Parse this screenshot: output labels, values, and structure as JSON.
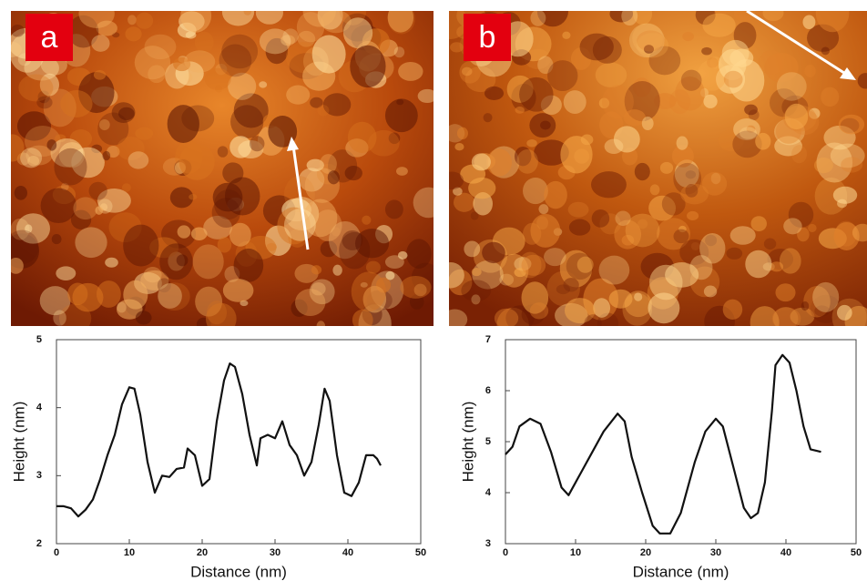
{
  "chart_data": [
    {
      "type": "line",
      "panel": "a",
      "xlabel": "Distance (nm)",
      "ylabel": "Height (nm)",
      "xlim": [
        0,
        50
      ],
      "xticks": [
        0,
        10,
        20,
        30,
        40,
        50
      ],
      "ylim": [
        2,
        5
      ],
      "yticks": [
        2,
        3,
        4,
        5
      ],
      "color": "#111111",
      "x": [
        0,
        1,
        2,
        3,
        4,
        5,
        6,
        7,
        8,
        9,
        10,
        10.7,
        11.5,
        12.5,
        13.5,
        14.5,
        15.5,
        16.5,
        17.5,
        18,
        19,
        20,
        21,
        22,
        23,
        23.8,
        24.5,
        25.5,
        26.5,
        27.5,
        28,
        29,
        30,
        31,
        32,
        33,
        34,
        35,
        36,
        36.8,
        37.5,
        38.5,
        39.5,
        40.5,
        41.5,
        42.5,
        43.5,
        44,
        44.5
      ],
      "values": [
        2.55,
        2.55,
        2.52,
        2.4,
        2.5,
        2.65,
        2.95,
        3.3,
        3.6,
        4.05,
        4.3,
        4.28,
        3.9,
        3.2,
        2.75,
        3.0,
        2.98,
        3.1,
        3.12,
        3.4,
        3.3,
        2.85,
        2.95,
        3.8,
        4.4,
        4.65,
        4.6,
        4.2,
        3.6,
        3.15,
        3.55,
        3.6,
        3.55,
        3.8,
        3.45,
        3.3,
        3.0,
        3.2,
        3.75,
        4.28,
        4.1,
        3.3,
        2.75,
        2.7,
        2.9,
        3.3,
        3.3,
        3.25,
        3.15
      ]
    },
    {
      "type": "line",
      "panel": "b",
      "xlabel": "Distance (nm)",
      "ylabel": "Height (nm)",
      "xlim": [
        0,
        50
      ],
      "xticks": [
        0,
        10,
        20,
        30,
        40,
        50
      ],
      "ylim": [
        3,
        7
      ],
      "yticks": [
        3,
        4,
        5,
        6,
        7
      ],
      "color": "#111111",
      "x": [
        0,
        1,
        2,
        3.5,
        5,
        6.5,
        8,
        9,
        10,
        12,
        14,
        16,
        17,
        18,
        19.5,
        21,
        22,
        23.5,
        25,
        27,
        28.5,
        30,
        31,
        32.5,
        34,
        35,
        36,
        37,
        38,
        38.5,
        39.5,
        40.5,
        41.5,
        42.5,
        43.5,
        45
      ],
      "values": [
        4.75,
        4.9,
        5.3,
        5.45,
        5.35,
        4.8,
        4.1,
        3.95,
        4.2,
        4.7,
        5.2,
        5.55,
        5.4,
        4.7,
        4.0,
        3.35,
        3.2,
        3.2,
        3.6,
        4.6,
        5.2,
        5.45,
        5.3,
        4.5,
        3.7,
        3.5,
        3.6,
        4.2,
        5.6,
        6.5,
        6.7,
        6.55,
        6.0,
        5.3,
        4.85,
        4.8
      ]
    }
  ]
}
